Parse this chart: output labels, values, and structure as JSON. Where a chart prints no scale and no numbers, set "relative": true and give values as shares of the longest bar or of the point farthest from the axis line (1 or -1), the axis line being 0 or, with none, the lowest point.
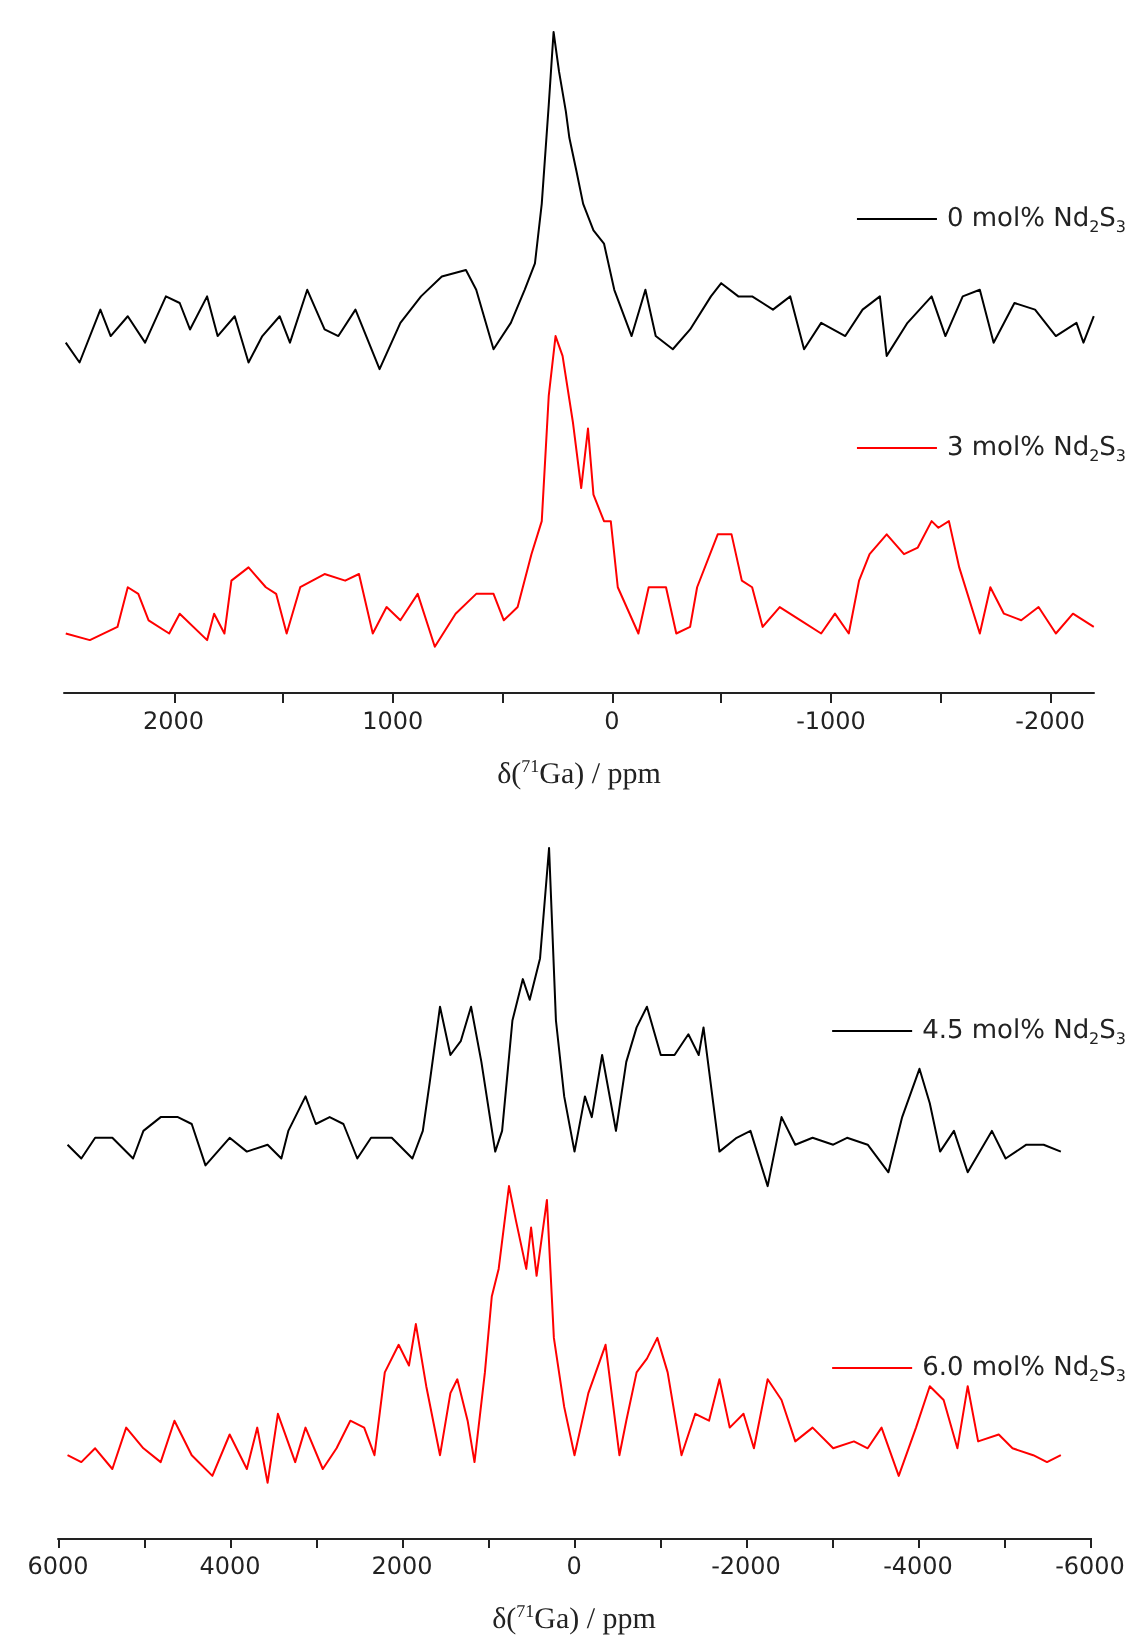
{
  "chart_data": [
    {
      "type": "line",
      "relative": true,
      "xlabel": "δ($^{71}$Ga) / ppm",
      "xlim": [
        2500,
        -2200
      ],
      "xticks": [
        2000,
        {
          "value": 1500,
          "label": null
        },
        1000,
        {
          "value": 500,
          "label": null
        },
        0,
        {
          "value": -500,
          "label": null
        },
        -1000,
        {
          "value": -1500,
          "label": null
        },
        -2000
      ],
      "legend": "right",
      "line_style": "solid",
      "series": [
        {
          "name": "0 mol% Nd$_{2}$S$_{3}$",
          "color": "#000000",
          "x": [
            2492,
            2429,
            2334,
            2287,
            2209,
            2130,
            2035,
            1972,
            1925,
            1847,
            1799,
            1721,
            1658,
            1595,
            1516,
            1469,
            1390,
            1311,
            1248,
            1170,
            1060,
            965,
            871,
            776,
            666,
            619,
            540,
            461,
            398,
            351,
            320,
            288,
            266,
            241,
            210,
            194,
            162,
            131,
            84,
            36,
            -11,
            -90,
            -153,
            -200,
            -278,
            -357,
            -452,
            -499,
            -577,
            -640,
            -735,
            -814,
            -877,
            -955,
            -1065,
            -1144,
            -1223,
            -1254,
            -1349,
            -1459,
            -1522,
            -1601,
            -1679,
            -1742,
            -1837,
            -1931,
            -2026,
            -2120,
            -2152,
            -2199
          ],
          "values": [
            0.53,
            0.5,
            0.58,
            0.54,
            0.57,
            0.53,
            0.6,
            0.59,
            0.55,
            0.6,
            0.54,
            0.57,
            0.5,
            0.54,
            0.57,
            0.53,
            0.61,
            0.55,
            0.54,
            0.58,
            0.49,
            0.56,
            0.6,
            0.63,
            0.64,
            0.61,
            0.52,
            0.56,
            0.61,
            0.65,
            0.74,
            0.89,
            1,
            0.94,
            0.88,
            0.84,
            0.79,
            0.74,
            0.7,
            0.68,
            0.61,
            0.54,
            0.61,
            0.54,
            0.52,
            0.55,
            0.6,
            0.62,
            0.6,
            0.6,
            0.58,
            0.6,
            0.52,
            0.56,
            0.54,
            0.58,
            0.6,
            0.51,
            0.56,
            0.6,
            0.54,
            0.6,
            0.61,
            0.53,
            0.59,
            0.58,
            0.54,
            0.56,
            0.53,
            0.57
          ]
        },
        {
          "name": "3 mol% Nd$_{2}$S$_{3}$",
          "color": "#ff0000",
          "x": [
            2492,
            2382,
            2256,
            2209,
            2161,
            2114,
            2020,
            1972,
            1847,
            1815,
            1768,
            1736,
            1658,
            1579,
            1532,
            1484,
            1422,
            1311,
            1217,
            1154,
            1091,
            1028,
            965,
            886,
            808,
            713,
            619,
            540,
            493,
            430,
            367,
            320,
            288,
            257,
            225,
            178,
            140,
            109,
            84,
            36,
            5,
            -27,
            -121,
            -168,
            -247,
            -294,
            -357,
            -389,
            -483,
            -546,
            -593,
            -640,
            -688,
            -766,
            -861,
            -955,
            -1018,
            -1081,
            -1128,
            -1176,
            -1254,
            -1333,
            -1396,
            -1459,
            -1490,
            -1538,
            -1585,
            -1679,
            -1727,
            -1789,
            -1868,
            -1947,
            -2026,
            -2104,
            -2199
          ],
          "values": [
            0.09,
            0.08,
            0.1,
            0.16,
            0.15,
            0.11,
            0.09,
            0.12,
            0.08,
            0.12,
            0.09,
            0.17,
            0.19,
            0.16,
            0.15,
            0.09,
            0.16,
            0.18,
            0.17,
            0.18,
            0.09,
            0.13,
            0.11,
            0.15,
            0.07,
            0.12,
            0.15,
            0.15,
            0.11,
            0.13,
            0.21,
            0.26,
            0.45,
            0.54,
            0.51,
            0.41,
            0.31,
            0.4,
            0.3,
            0.26,
            0.26,
            0.16,
            0.09,
            0.16,
            0.16,
            0.09,
            0.1,
            0.16,
            0.24,
            0.24,
            0.17,
            0.16,
            0.1,
            0.13,
            0.11,
            0.09,
            0.12,
            0.09,
            0.17,
            0.21,
            0.24,
            0.21,
            0.22,
            0.26,
            0.25,
            0.26,
            0.19,
            0.09,
            0.16,
            0.12,
            0.11,
            0.13,
            0.09,
            0.12,
            0.1
          ]
        }
      ]
    },
    {
      "type": "line",
      "relative": true,
      "xlabel": "δ($^{71}$Ga) / ppm",
      "xlim": [
        6000,
        -6000
      ],
      "xticks": [
        6000,
        {
          "value": 5000,
          "label": null
        },
        4000,
        {
          "value": 3000,
          "label": null
        },
        2000,
        {
          "value": 1000,
          "label": null
        },
        0,
        {
          "value": -1000,
          "label": null
        },
        -2000,
        {
          "value": -3000,
          "label": null
        },
        -4000,
        {
          "value": -5000,
          "label": null
        },
        -6000
      ],
      "legend": "right",
      "line_style": "solid",
      "series": [
        {
          "name": "4.5 mol% Nd$_{2}$S$_{3}$",
          "color": "#000000",
          "x": [
            5889,
            5729,
            5568,
            5368,
            5127,
            5007,
            4806,
            4606,
            4445,
            4285,
            4004,
            3804,
            3563,
            3403,
            3322,
            3122,
            3002,
            2841,
            2681,
            2520,
            2360,
            2119,
            1879,
            1758,
            1678,
            1558,
            1437,
            1317,
            1197,
            1077,
            916,
            836,
            716,
            595,
            515,
            395,
            290,
            210,
            114,
            -6,
            -127,
            -207,
            -327,
            -488,
            -608,
            -728,
            -848,
            -1009,
            -1169,
            -1330,
            -1450,
            -1506,
            -1691,
            -1891,
            -2052,
            -2252,
            -2413,
            -2573,
            -2774,
            -3014,
            -3175,
            -3415,
            -3656,
            -3816,
            -4017,
            -4137,
            -4257,
            -4418,
            -4578,
            -4859,
            -5019,
            -5260,
            -5461,
            -5661
          ],
          "values": [
            0.57,
            0.55,
            0.58,
            0.58,
            0.55,
            0.59,
            0.61,
            0.61,
            0.6,
            0.54,
            0.58,
            0.56,
            0.57,
            0.55,
            0.59,
            0.64,
            0.6,
            0.61,
            0.6,
            0.55,
            0.58,
            0.58,
            0.55,
            0.59,
            0.66,
            0.77,
            0.7,
            0.72,
            0.77,
            0.69,
            0.56,
            0.59,
            0.75,
            0.81,
            0.78,
            0.84,
            1,
            0.75,
            0.64,
            0.56,
            0.64,
            0.61,
            0.7,
            0.59,
            0.69,
            0.74,
            0.77,
            0.7,
            0.7,
            0.73,
            0.7,
            0.74,
            0.56,
            0.58,
            0.59,
            0.51,
            0.61,
            0.57,
            0.58,
            0.57,
            0.58,
            0.57,
            0.53,
            0.61,
            0.68,
            0.63,
            0.56,
            0.59,
            0.53,
            0.59,
            0.55,
            0.57,
            0.57,
            0.56
          ]
        },
        {
          "name": "6.0 mol% Nd$_{2}$S$_{3}$",
          "color": "#ff0000",
          "x": [
            5889,
            5729,
            5568,
            5368,
            5207,
            5007,
            4806,
            4646,
            4445,
            4205,
            4004,
            3804,
            3683,
            3563,
            3443,
            3242,
            3122,
            2921,
            2761,
            2601,
            2440,
            2320,
            2200,
            2039,
            1919,
            1839,
            1718,
            1558,
            1437,
            1357,
            1237,
            1157,
            1036,
            956,
            876,
            756,
            675,
            555,
            499,
            435,
            315,
            234,
            114,
            -6,
            -167,
            -367,
            -528,
            -608,
            -728,
            -848,
            -969,
            -1089,
            -1250,
            -1410,
            -1570,
            -1691,
            -1811,
            -1971,
            -2092,
            -2252,
            -2413,
            -2573,
            -2774,
            -3014,
            -3255,
            -3415,
            -3576,
            -3776,
            -3977,
            -4137,
            -4298,
            -4458,
            -4578,
            -4699,
            -4939,
            -5099,
            -5340,
            -5500,
            -5661
          ],
          "values": [
            0.12,
            0.11,
            0.13,
            0.1,
            0.16,
            0.13,
            0.11,
            0.17,
            0.12,
            0.09,
            0.15,
            0.1,
            0.16,
            0.08,
            0.18,
            0.11,
            0.16,
            0.1,
            0.13,
            0.17,
            0.16,
            0.12,
            0.24,
            0.28,
            0.25,
            0.31,
            0.22,
            0.12,
            0.21,
            0.23,
            0.17,
            0.11,
            0.24,
            0.35,
            0.39,
            0.51,
            0.46,
            0.39,
            0.45,
            0.38,
            0.49,
            0.29,
            0.19,
            0.12,
            0.21,
            0.28,
            0.12,
            0.17,
            0.24,
            0.26,
            0.29,
            0.24,
            0.12,
            0.18,
            0.17,
            0.23,
            0.16,
            0.18,
            0.13,
            0.23,
            0.2,
            0.14,
            0.16,
            0.13,
            0.14,
            0.13,
            0.16,
            0.09,
            0.16,
            0.22,
            0.2,
            0.13,
            0.22,
            0.14,
            0.15,
            0.13,
            0.12,
            0.11,
            0.12
          ]
        }
      ]
    }
  ]
}
